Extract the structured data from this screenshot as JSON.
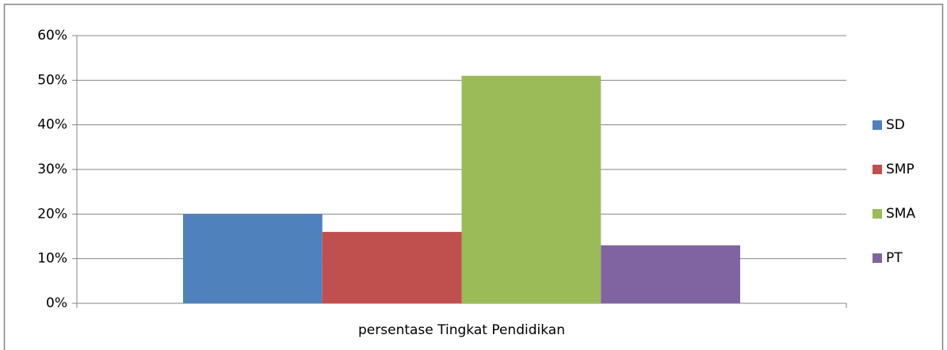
{
  "chart_data": {
    "type": "bar",
    "categories": [
      "persentase Tingkat Pendidikan"
    ],
    "series": [
      {
        "name": "SD",
        "color": "#4f81bd",
        "values": [
          20
        ]
      },
      {
        "name": "SMP",
        "color": "#c0504d",
        "values": [
          16
        ]
      },
      {
        "name": "SMA",
        "color": "#9bbb59",
        "values": [
          51
        ]
      },
      {
        "name": "PT",
        "color": "#8064a2",
        "values": [
          13
        ]
      }
    ],
    "ylim": [
      0,
      60
    ],
    "yticks": [
      {
        "value": 0,
        "label": "0%"
      },
      {
        "value": 10,
        "label": "10%"
      },
      {
        "value": 20,
        "label": "20%"
      },
      {
        "value": 30,
        "label": "30%"
      },
      {
        "value": 40,
        "label": "40%"
      },
      {
        "value": 50,
        "label": "50%"
      },
      {
        "value": 60,
        "label": "60%"
      }
    ],
    "grid": true,
    "legend": "right"
  }
}
